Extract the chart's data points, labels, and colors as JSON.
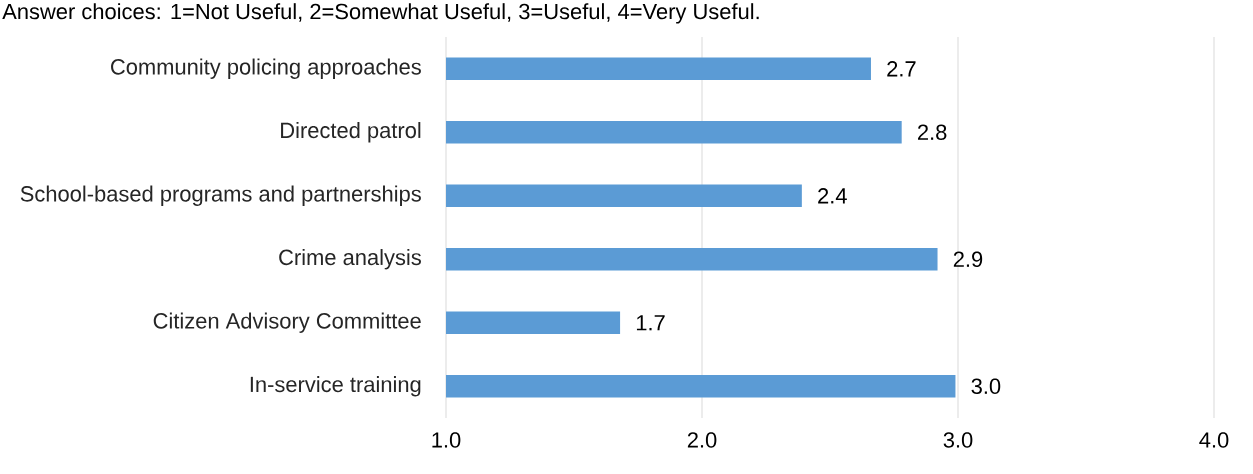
{
  "chart_data": {
    "type": "bar",
    "orientation": "horizontal",
    "title": "Answer choices: 1=Not Useful, 2=Somewhat Useful, 3=Useful, 4=Very Useful.",
    "categories": [
      "Community policing approaches",
      "Directed patrol",
      "School-based programs and partnerships",
      "Crime analysis",
      "Citizen Advisory Committee",
      "In-service training"
    ],
    "values": [
      2.66,
      2.78,
      2.39,
      2.92,
      1.68,
      2.99
    ],
    "value_labels": [
      "2.7",
      "2.8",
      "2.4",
      "2.9",
      "1.7",
      "3.0"
    ],
    "color": "#5b9bd5",
    "xlim": [
      1,
      4
    ],
    "xticks": [
      {
        "value": 1,
        "label": "1.0"
      },
      {
        "value": 2,
        "label": "2.0"
      },
      {
        "value": 3,
        "label": "3.0"
      },
      {
        "value": 4,
        "label": "4.0"
      }
    ],
    "grid": "x"
  }
}
